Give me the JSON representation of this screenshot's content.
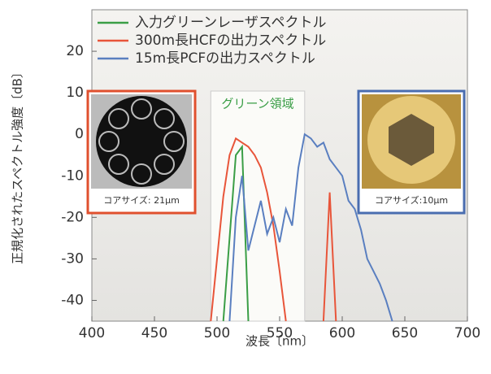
{
  "chart_data": {
    "type": "line",
    "x_label": "波長〔nm〕",
    "y_label": "正規化されたスペクトル強度〔dB〕",
    "x": [
      495,
      500,
      505,
      510,
      515,
      520,
      525,
      530,
      535,
      540,
      545,
      550,
      555,
      560,
      565,
      570,
      575,
      580,
      585,
      590,
      595,
      600,
      605,
      610,
      615,
      620,
      625,
      630,
      635,
      640,
      645
    ],
    "series": [
      {
        "name": "入力グリーンレーザスペクトル",
        "color": "#3a9e46",
        "values": [
          null,
          null,
          -45,
          -25,
          -5,
          -3,
          -45,
          null,
          null,
          null,
          null,
          null,
          null,
          null,
          null,
          null,
          null,
          null,
          null,
          null,
          null,
          null,
          null,
          null,
          null,
          null,
          null,
          null,
          null,
          null,
          null
        ]
      },
      {
        "name": "300m長HCFの出力スペクトル",
        "color": "#e8553a",
        "values": [
          -45,
          -30,
          -15,
          -5,
          -1,
          -2,
          -3,
          -5,
          -8,
          -14,
          -22,
          -33,
          -45,
          null,
          null,
          null,
          null,
          null,
          -45,
          -14,
          -45,
          null,
          null,
          null,
          null,
          null,
          null,
          null,
          null,
          null,
          null
        ]
      },
      {
        "name": "15m長PCFの出力スペクトル",
        "color": "#5a7fc0",
        "values": [
          null,
          null,
          null,
          -45,
          -20,
          -10,
          -28,
          -22,
          -16,
          -24,
          -20,
          -26,
          -18,
          -22,
          -8,
          0,
          -1,
          -3,
          -2,
          -6,
          -8,
          -10,
          -16,
          -18,
          -23,
          -30,
          -33,
          -36,
          -40,
          -45,
          null
        ]
      }
    ],
    "xlim": [
      400,
      700
    ],
    "xticks": [
      400,
      450,
      500,
      550,
      600,
      650,
      700
    ],
    "ylim": [
      -45,
      30
    ],
    "yticks": [
      -40,
      -30,
      -20,
      -10,
      0,
      10,
      20
    ],
    "region": {
      "range": [
        495,
        570
      ],
      "label": "グリーン領域",
      "color": "#3a9e46"
    },
    "insets": [
      {
        "caption": "コアサイズ: 21µm",
        "color": "#e0502e"
      },
      {
        "caption": "コアサイズ:10µm",
        "color": "#4a6db0"
      }
    ]
  }
}
